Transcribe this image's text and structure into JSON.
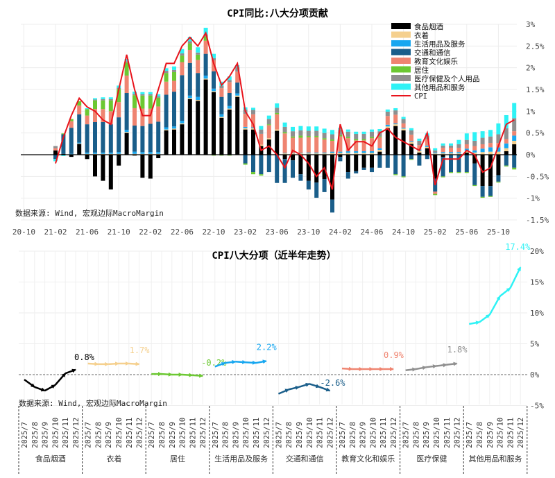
{
  "top_chart": {
    "title": "CPI同比:八大分项贡献",
    "source": "数据来源: Wind, 宏观边际MacroMargin",
    "chart_data": {
      "type": "bar",
      "stacked": true,
      "x_start": "2021-02",
      "x_end": "2025-12",
      "x_tick_labels": [
        "20-10",
        "21-02",
        "21-06",
        "21-10",
        "22-02",
        "22-06",
        "22-10",
        "23-02",
        "23-06",
        "23-10",
        "24-02",
        "24-06",
        "24-10",
        "25-02",
        "25-06",
        "25-10"
      ],
      "y_tick_labels": [
        "3%",
        "2.5%",
        "2%",
        "1.5%",
        "1%",
        "0.5%",
        "0%",
        "-0.5%",
        "-1%",
        "-1.5%"
      ],
      "ylim": [
        -1.5,
        3
      ],
      "y_axis_position": "right",
      "grid": true,
      "legend_position": "top-right",
      "series": [
        {
          "name": "食品烟酒",
          "color": "#000000",
          "values": [
            0.1,
            0.02,
            -0.05,
            0.25,
            -0.1,
            -0.5,
            -0.6,
            -0.8,
            -0.25,
            0.5,
            -0.02,
            -0.53,
            -0.55,
            -0.08,
            0.56,
            0.58,
            0.7,
            1.28,
            1.24,
            1.73,
            1.44,
            0.85,
            1.04,
            1.33,
            0.58,
            0.58,
            0.2,
            0.35,
            0.55,
            -0.1,
            -0.13,
            -0.45,
            -0.6,
            -0.64,
            -0.56,
            -1.03,
            -0.05,
            -0.4,
            -0.38,
            -0.3,
            -0.3,
            0.07,
            0.61,
            0.66,
            0.56,
            0.25,
            0.05,
            0.15,
            -0.55,
            -0.05,
            0.0,
            0.0,
            0.05,
            -0.2,
            -0.72,
            -0.72,
            -0.47,
            0.08,
            0.24
          ]
        },
        {
          "name": "衣着",
          "color": "#f5d08e",
          "values": [
            0.0,
            0.0,
            0.01,
            0.01,
            0.02,
            0.02,
            0.02,
            0.02,
            0.02,
            0.02,
            0.02,
            0.02,
            0.02,
            0.02,
            0.02,
            0.02,
            0.02,
            0.02,
            0.02,
            0.02,
            0.02,
            0.02,
            0.02,
            0.03,
            0.03,
            0.03,
            0.03,
            0.03,
            0.03,
            0.03,
            0.03,
            0.03,
            0.03,
            0.03,
            0.03,
            0.04,
            0.04,
            0.04,
            0.04,
            0.04,
            0.04,
            0.04,
            0.04,
            0.04,
            0.04,
            0.04,
            0.04,
            0.03,
            0.03,
            0.03,
            0.03,
            0.03,
            0.04,
            0.05,
            0.06,
            0.07,
            0.07,
            0.07,
            0.08
          ]
        },
        {
          "name": "生活用品及服务",
          "color": "#18a7f0",
          "values": [
            0.0,
            0.0,
            0.01,
            0.02,
            0.03,
            0.03,
            0.03,
            0.03,
            0.04,
            0.05,
            0.05,
            0.04,
            0.04,
            0.04,
            0.05,
            0.05,
            0.06,
            0.06,
            0.07,
            0.07,
            0.06,
            0.06,
            0.06,
            0.05,
            0.03,
            0.02,
            0.0,
            0.0,
            0.0,
            0.01,
            0.01,
            0.01,
            0.02,
            0.02,
            0.02,
            0.03,
            0.03,
            0.04,
            0.04,
            0.04,
            0.04,
            0.04,
            0.04,
            0.02,
            0.02,
            0.02,
            0.03,
            0.03,
            0.02,
            0.03,
            0.03,
            0.03,
            0.05,
            0.05,
            0.08,
            0.1,
            0.1,
            0.11,
            0.12
          ]
        },
        {
          "name": "交通和通信",
          "color": "#1a5e8a",
          "values": [
            -0.1,
            0.45,
            0.6,
            0.65,
            0.65,
            0.7,
            0.7,
            0.65,
            0.8,
            0.85,
            0.6,
            0.6,
            0.65,
            0.7,
            0.75,
            0.8,
            1.05,
            0.75,
            0.55,
            0.5,
            0.4,
            0.4,
            0.3,
            0.25,
            -0.2,
            -0.4,
            -0.45,
            -0.4,
            -0.65,
            -0.55,
            -0.4,
            -0.15,
            -0.2,
            -0.35,
            -0.3,
            -0.3,
            -0.1,
            -0.15,
            -0.05,
            -0.05,
            -0.1,
            -0.3,
            -0.3,
            -0.45,
            -0.5,
            -0.1,
            -0.25,
            -0.1,
            -0.3,
            -0.45,
            -0.4,
            -0.4,
            -0.4,
            -0.5,
            -0.25,
            -0.23,
            -0.15,
            -0.25,
            -0.3
          ]
        },
        {
          "name": "教育文化娱乐",
          "color": "#ef8470",
          "values": [
            0.05,
            0.0,
            0.15,
            0.2,
            0.2,
            0.3,
            0.3,
            0.3,
            0.35,
            0.4,
            0.4,
            0.4,
            0.35,
            0.35,
            0.3,
            0.25,
            0.3,
            0.3,
            0.3,
            0.3,
            0.25,
            0.2,
            0.25,
            0.25,
            0.3,
            0.3,
            0.25,
            0.3,
            0.35,
            0.45,
            0.35,
            0.35,
            0.35,
            0.35,
            0.3,
            0.25,
            0.35,
            0.3,
            0.25,
            0.25,
            0.3,
            0.25,
            0.2,
            0.2,
            0.1,
            0.15,
            0.1,
            0.15,
            -0.05,
            0.1,
            0.1,
            0.1,
            0.1,
            0.1,
            0.1,
            0.1,
            0.1,
            0.1,
            0.1
          ]
        },
        {
          "name": "居住",
          "color": "#6cc832",
          "values": [
            0.0,
            0.02,
            0.05,
            0.1,
            0.15,
            0.2,
            0.2,
            0.25,
            0.3,
            0.3,
            0.3,
            0.3,
            0.3,
            0.2,
            0.2,
            0.2,
            0.15,
            0.15,
            0.12,
            0.1,
            -0.02,
            -0.02,
            -0.02,
            0.0,
            -0.03,
            -0.05,
            -0.03,
            0.02,
            0.03,
            0.03,
            0.03,
            0.05,
            0.03,
            0.03,
            0.03,
            0.03,
            0.03,
            0.03,
            0.03,
            0.03,
            0.03,
            0.02,
            0.0,
            -0.02,
            -0.02,
            -0.02,
            0.0,
            0.0,
            -0.03,
            -0.02,
            -0.02,
            -0.02,
            -0.02,
            -0.02,
            -0.02,
            -0.02,
            -0.02,
            -0.02,
            -0.04
          ]
        },
        {
          "name": "医疗保健及个人用品",
          "color": "#8f8f8f",
          "values": [
            0.05,
            0.0,
            0.0,
            0.0,
            0.0,
            0.02,
            0.03,
            0.03,
            0.03,
            0.03,
            0.03,
            0.03,
            0.03,
            0.03,
            0.05,
            0.05,
            0.05,
            0.05,
            0.05,
            0.05,
            0.05,
            0.05,
            0.05,
            0.1,
            0.1,
            0.1,
            0.1,
            0.12,
            0.12,
            0.12,
            0.12,
            0.12,
            0.12,
            0.12,
            0.12,
            0.12,
            0.12,
            0.12,
            0.12,
            0.12,
            0.12,
            0.12,
            0.1,
            0.1,
            0.1,
            0.1,
            0.1,
            0.08,
            0.05,
            0.05,
            0.05,
            0.08,
            0.1,
            0.12,
            0.15,
            0.15,
            0.2,
            0.25,
            0.3
          ]
        },
        {
          "name": "其他用品和服务",
          "color": "#2ef2f5",
          "values": [
            -0.05,
            -0.03,
            0.0,
            0.0,
            0.02,
            0.03,
            0.04,
            0.04,
            0.05,
            0.05,
            0.05,
            0.05,
            0.05,
            0.05,
            0.06,
            0.08,
            0.1,
            0.1,
            0.12,
            0.15,
            0.1,
            0.1,
            0.08,
            0.05,
            0.05,
            0.05,
            0.08,
            0.08,
            0.1,
            0.1,
            0.1,
            0.1,
            0.1,
            0.1,
            0.1,
            0.1,
            0.05,
            0.05,
            0.05,
            0.05,
            0.05,
            0.05,
            0.05,
            0.05,
            0.05,
            0.05,
            0.05,
            0.05,
            0.05,
            0.05,
            0.05,
            0.1,
            0.15,
            0.2,
            0.15,
            0.15,
            0.25,
            0.3,
            0.35
          ]
        }
      ],
      "line": {
        "name": "CPI",
        "color": "#e8141c",
        "values": [
          -0.2,
          0.4,
          0.9,
          1.3,
          1.1,
          1.0,
          0.8,
          0.7,
          1.5,
          2.3,
          1.5,
          0.9,
          0.9,
          1.5,
          2.1,
          2.1,
          2.5,
          2.7,
          2.5,
          2.8,
          2.1,
          1.6,
          1.8,
          2.1,
          1.0,
          0.7,
          0.1,
          0.2,
          0.0,
          -0.3,
          0.1,
          0.0,
          -0.2,
          -0.5,
          -0.3,
          -0.8,
          0.7,
          0.1,
          0.3,
          0.3,
          0.2,
          0.5,
          0.6,
          0.4,
          0.3,
          0.2,
          0.1,
          0.5,
          -0.7,
          -0.1,
          -0.1,
          -0.1,
          0.1,
          0.0,
          -0.4,
          -0.3,
          0.2,
          0.7,
          0.8
        ]
      }
    }
  },
  "bottom_chart": {
    "title": "CPI八大分项（近半年走势）",
    "source": "数据来源: Wind, 宏观边际MacroMargin",
    "chart_data": {
      "type": "line",
      "months": [
        "2025/7",
        "2025/8",
        "2025/9",
        "2025/10",
        "2025/11",
        "2025/12"
      ],
      "y_tick_labels": [
        "20%",
        "15%",
        "10%",
        "5%",
        "0%",
        "-5%"
      ],
      "ylim": [
        -5,
        20
      ],
      "y_axis_position": "right",
      "grid": true,
      "series": [
        {
          "name": "食品烟酒",
          "color": "#000000",
          "values": [
            -0.8,
            -2.0,
            -2.6,
            -1.7,
            0.2,
            0.8
          ],
          "end_label": "0.8%"
        },
        {
          "name": "衣着",
          "color": "#f5d08e",
          "values": [
            1.8,
            1.7,
            1.7,
            1.8,
            1.8,
            1.7
          ],
          "end_label": "1.7%"
        },
        {
          "name": "居住",
          "color": "#6cc832",
          "values": [
            0.1,
            0.1,
            0.0,
            0.0,
            -0.1,
            -0.2
          ],
          "end_label": "-0.2%"
        },
        {
          "name": "生活用品及服务",
          "color": "#18a7f0",
          "values": [
            1.3,
            1.9,
            2.1,
            2.0,
            1.9,
            2.2
          ],
          "end_label": "2.2%"
        },
        {
          "name": "交通和通信",
          "color": "#1a5e8a",
          "values": [
            -3.1,
            -2.4,
            -2.0,
            -1.5,
            -2.0,
            -2.6
          ],
          "end_label": "-2.6%"
        },
        {
          "name": "教育文化和娱乐",
          "color": "#ef8470",
          "values": [
            1.0,
            0.9,
            0.9,
            0.9,
            0.9,
            0.9
          ],
          "end_label": "0.9%"
        },
        {
          "name": "医疗保健",
          "color": "#8f8f8f",
          "values": [
            0.7,
            0.9,
            1.2,
            1.4,
            1.6,
            1.8
          ],
          "end_label": "1.8%"
        },
        {
          "name": "其他用品和服务",
          "color": "#2ef2f5",
          "values": [
            8.2,
            8.5,
            9.7,
            12.7,
            14.0,
            17.4
          ],
          "end_label": "17.4%"
        }
      ]
    }
  }
}
